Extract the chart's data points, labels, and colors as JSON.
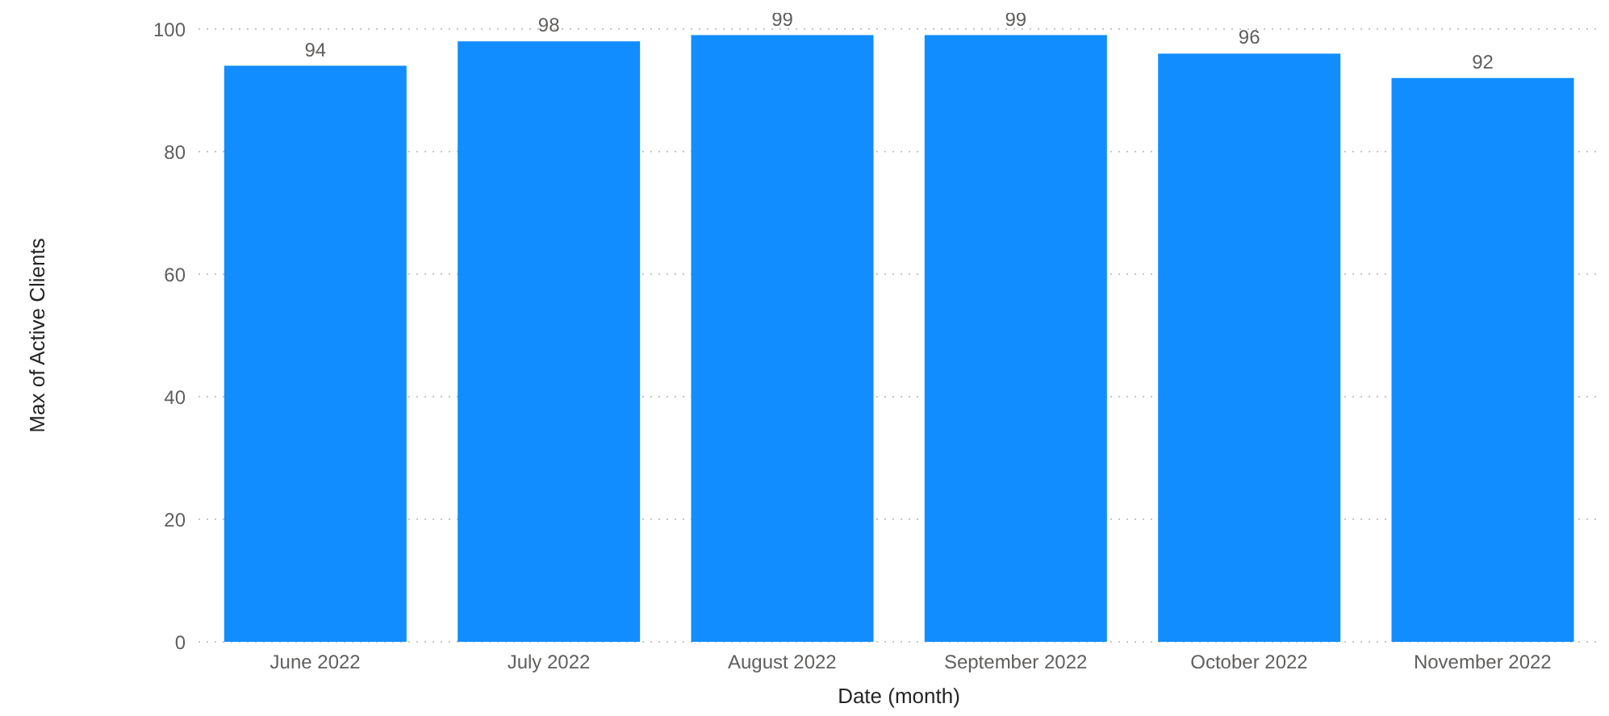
{
  "chart_data": {
    "type": "bar",
    "xlabel": "Date (month)",
    "ylabel": "Max of Active Clients",
    "categories": [
      "June 2022",
      "July 2022",
      "August 2022",
      "September 2022",
      "October 2022",
      "November 2022"
    ],
    "values": [
      94,
      98,
      99,
      99,
      96,
      92
    ],
    "color": "#118dff",
    "ylim": [
      0,
      100
    ],
    "yticks": [
      0,
      20,
      40,
      60,
      80,
      100
    ],
    "grid": "y",
    "data_labels": true
  }
}
